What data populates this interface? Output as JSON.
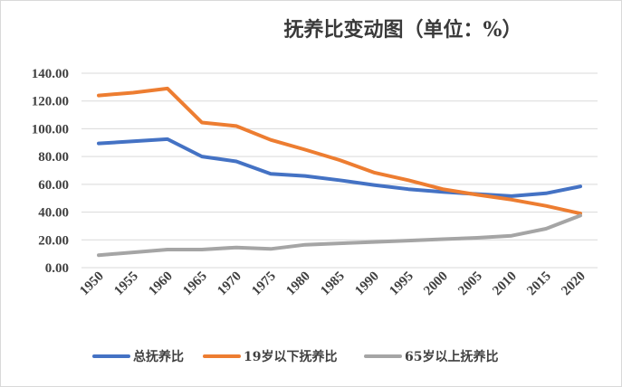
{
  "chart_data": {
    "type": "line",
    "title": "抚养比变动图（单位：%）",
    "xlabel": "",
    "ylabel": "",
    "x": [
      "1950",
      "1955",
      "1960",
      "1965",
      "1970",
      "1975",
      "1980",
      "1985",
      "1990",
      "1995",
      "2000",
      "2005",
      "2010",
      "2015",
      "2020"
    ],
    "ylim": [
      0,
      140
    ],
    "y_ticks": [
      "0.00",
      "20.00",
      "40.00",
      "60.00",
      "80.00",
      "100.00",
      "120.00",
      "140.00"
    ],
    "grid": true,
    "legend_position": "bottom",
    "series": [
      {
        "name": "总抚养比",
        "color": "#4472c4",
        "values": [
          89.5,
          91.0,
          92.5,
          80.0,
          76.5,
          67.5,
          66.0,
          63.0,
          59.5,
          56.5,
          54.5,
          53.0,
          51.5,
          53.5,
          58.5
        ]
      },
      {
        "name": "19岁以下抚养比",
        "color": "#ed7d31",
        "values": [
          124.0,
          126.0,
          129.0,
          104.5,
          102.0,
          92.0,
          85.0,
          77.5,
          68.5,
          63.0,
          56.5,
          52.5,
          49.0,
          44.5,
          39.0
        ]
      },
      {
        "name": "65岁以上抚养比",
        "color": "#a5a5a5",
        "values": [
          9.0,
          11.0,
          13.0,
          13.0,
          14.5,
          13.5,
          16.5,
          17.5,
          18.5,
          19.5,
          20.5,
          21.5,
          23.0,
          28.0,
          37.5
        ]
      }
    ]
  }
}
